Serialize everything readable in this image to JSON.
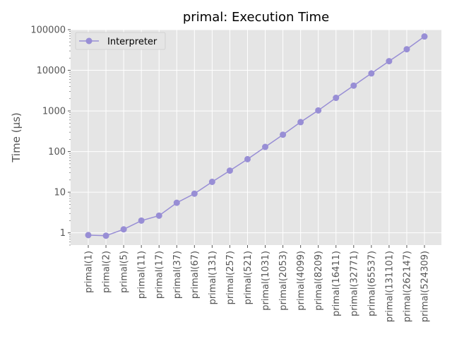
{
  "chart_data": {
    "type": "line",
    "title": "primal: Execution Time",
    "xlabel": "",
    "ylabel": "Time (μs)",
    "yscale": "log",
    "ylim": [
      0.5,
      100000
    ],
    "y_ticks": [
      {
        "value": 1,
        "label": "1"
      },
      {
        "value": 10,
        "label": "10"
      },
      {
        "value": 100,
        "label": "100"
      },
      {
        "value": 1000,
        "label": "1000"
      },
      {
        "value": 10000,
        "label": "10000"
      },
      {
        "value": 100000,
        "label": "100000"
      }
    ],
    "grid": true,
    "legend_position": "top-left",
    "categories": [
      "primal(1)",
      "primal(2)",
      "primal(5)",
      "primal(11)",
      "primal(17)",
      "primal(37)",
      "primal(67)",
      "primal(131)",
      "primal(257)",
      "primal(521)",
      "primal(1031)",
      "primal(2053)",
      "primal(4099)",
      "primal(8209)",
      "primal(16411)",
      "primal(32771)",
      "primal(65537)",
      "primal(131101)",
      "primal(262147)",
      "primal(524309)"
    ],
    "series": [
      {
        "name": "Interpreter",
        "color": "#988ED5",
        "values": [
          0.88,
          0.85,
          1.22,
          2.0,
          2.65,
          5.5,
          9.2,
          18,
          34,
          65,
          130,
          260,
          530,
          1030,
          2100,
          4200,
          8400,
          16800,
          33000,
          68000
        ]
      }
    ],
    "style": {
      "plot_background": "#E5E5E5",
      "grid_color": "#FFFFFF"
    }
  }
}
